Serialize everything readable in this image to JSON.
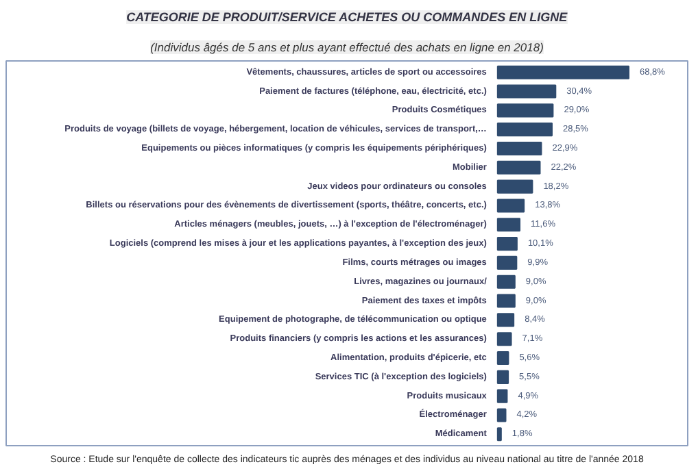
{
  "chart_data": {
    "type": "bar",
    "orientation": "horizontal",
    "title": "CATEGORIE DE PRODUIT/SERVICE ACHETES OU COMMANDES EN LIGNE",
    "subtitle": "(Individus âgés de 5 ans et plus ayant effectué des achats en ligne en 2018)",
    "categories": [
      "Vêtements, chaussures, articles de sport ou accessoires",
      "Paiement de factures (téléphone, eau, électricité, etc.)",
      "Produits Cosmétiques",
      "Produits de voyage (billets de voyage, hébergement, location de véhicules, services de transport,…",
      "Equipements ou pièces informatiques (y compris les équipements périphériques)",
      "Mobilier",
      "Jeux videos pour ordinateurs ou consoles",
      "Billets ou réservations pour des évènements de divertissement (sports, théâtre, concerts, etc.)",
      "Articles ménagers (meubles, jouets, …) à l'exception de l'électroménager)",
      "Logiciels (comprend les mises à jour et les applications payantes, à l'exception des jeux)",
      "Films, courts métrages ou images",
      "Livres, magazines ou journaux/",
      "Paiement des taxes et impôts",
      "Equipement de photographe, de télécommunication ou optique",
      "Produits financiers (y compris les actions et les assurances)",
      "Alimentation, produits d'épicerie, etc",
      "Services TIC (à l'exception des logiciels)",
      "Produits musicaux",
      "Électroménager",
      "Médicament"
    ],
    "values": [
      68.8,
      30.4,
      29.0,
      28.5,
      22.9,
      22.2,
      18.2,
      13.8,
      11.6,
      10.1,
      9.9,
      9.0,
      9.0,
      8.4,
      7.1,
      5.6,
      5.5,
      4.9,
      4.2,
      1.8
    ],
    "value_labels": [
      "68,8%",
      "30,4%",
      "29,0%",
      "28,5%",
      "22,9%",
      "22,2%",
      "18,2%",
      "13,8%",
      "11,6%",
      "10,1%",
      "9,9%",
      "9,0%",
      "9,0%",
      "8,4%",
      "7,1%",
      "5,6%",
      "5,5%",
      "4,9%",
      "4,2%",
      "1,8%"
    ],
    "color": "#2f4b6e",
    "annotations": [
      "Source : Etude sur l'enquête de collecte des indicateurs tic auprès des ménages et des individus au niveau national au titre de l'année 2018"
    ]
  }
}
